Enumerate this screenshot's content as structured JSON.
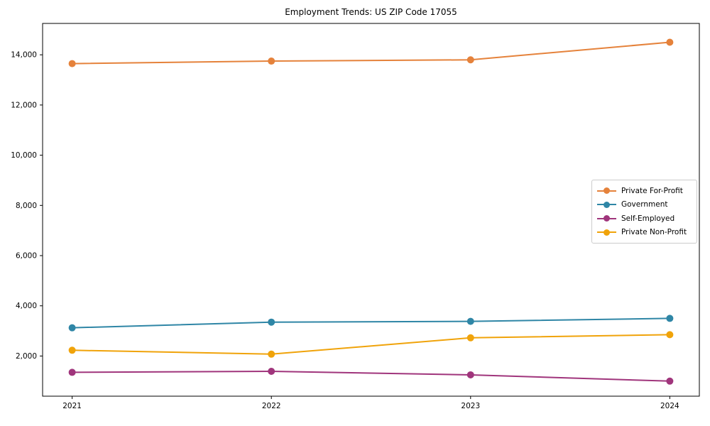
{
  "chart_data": {
    "type": "line",
    "title": "Employment Trends: US ZIP Code 17055",
    "xlabel": "",
    "ylabel": "",
    "categories": [
      "2021",
      "2022",
      "2023",
      "2024"
    ],
    "series": [
      {
        "name": "Private For-Profit",
        "color": "#e5823b",
        "values": [
          13650,
          13750,
          13800,
          14500
        ]
      },
      {
        "name": "Government",
        "color": "#2f86a6",
        "values": [
          3125,
          3350,
          3380,
          3500
        ]
      },
      {
        "name": "Self-Employed",
        "color": "#a0357c",
        "values": [
          1350,
          1390,
          1250,
          1000
        ]
      },
      {
        "name": "Private Non-Profit",
        "color": "#f0a30a",
        "values": [
          2230,
          2075,
          2725,
          2850
        ]
      }
    ],
    "ylim": [
      400,
      15250
    ],
    "yticks": [
      2000,
      4000,
      6000,
      8000,
      10000,
      12000,
      14000
    ],
    "grid": false,
    "legend_position": "center-right",
    "marker": "circle",
    "frame_color": "#000000",
    "legend_border_color": "#cccccc"
  }
}
